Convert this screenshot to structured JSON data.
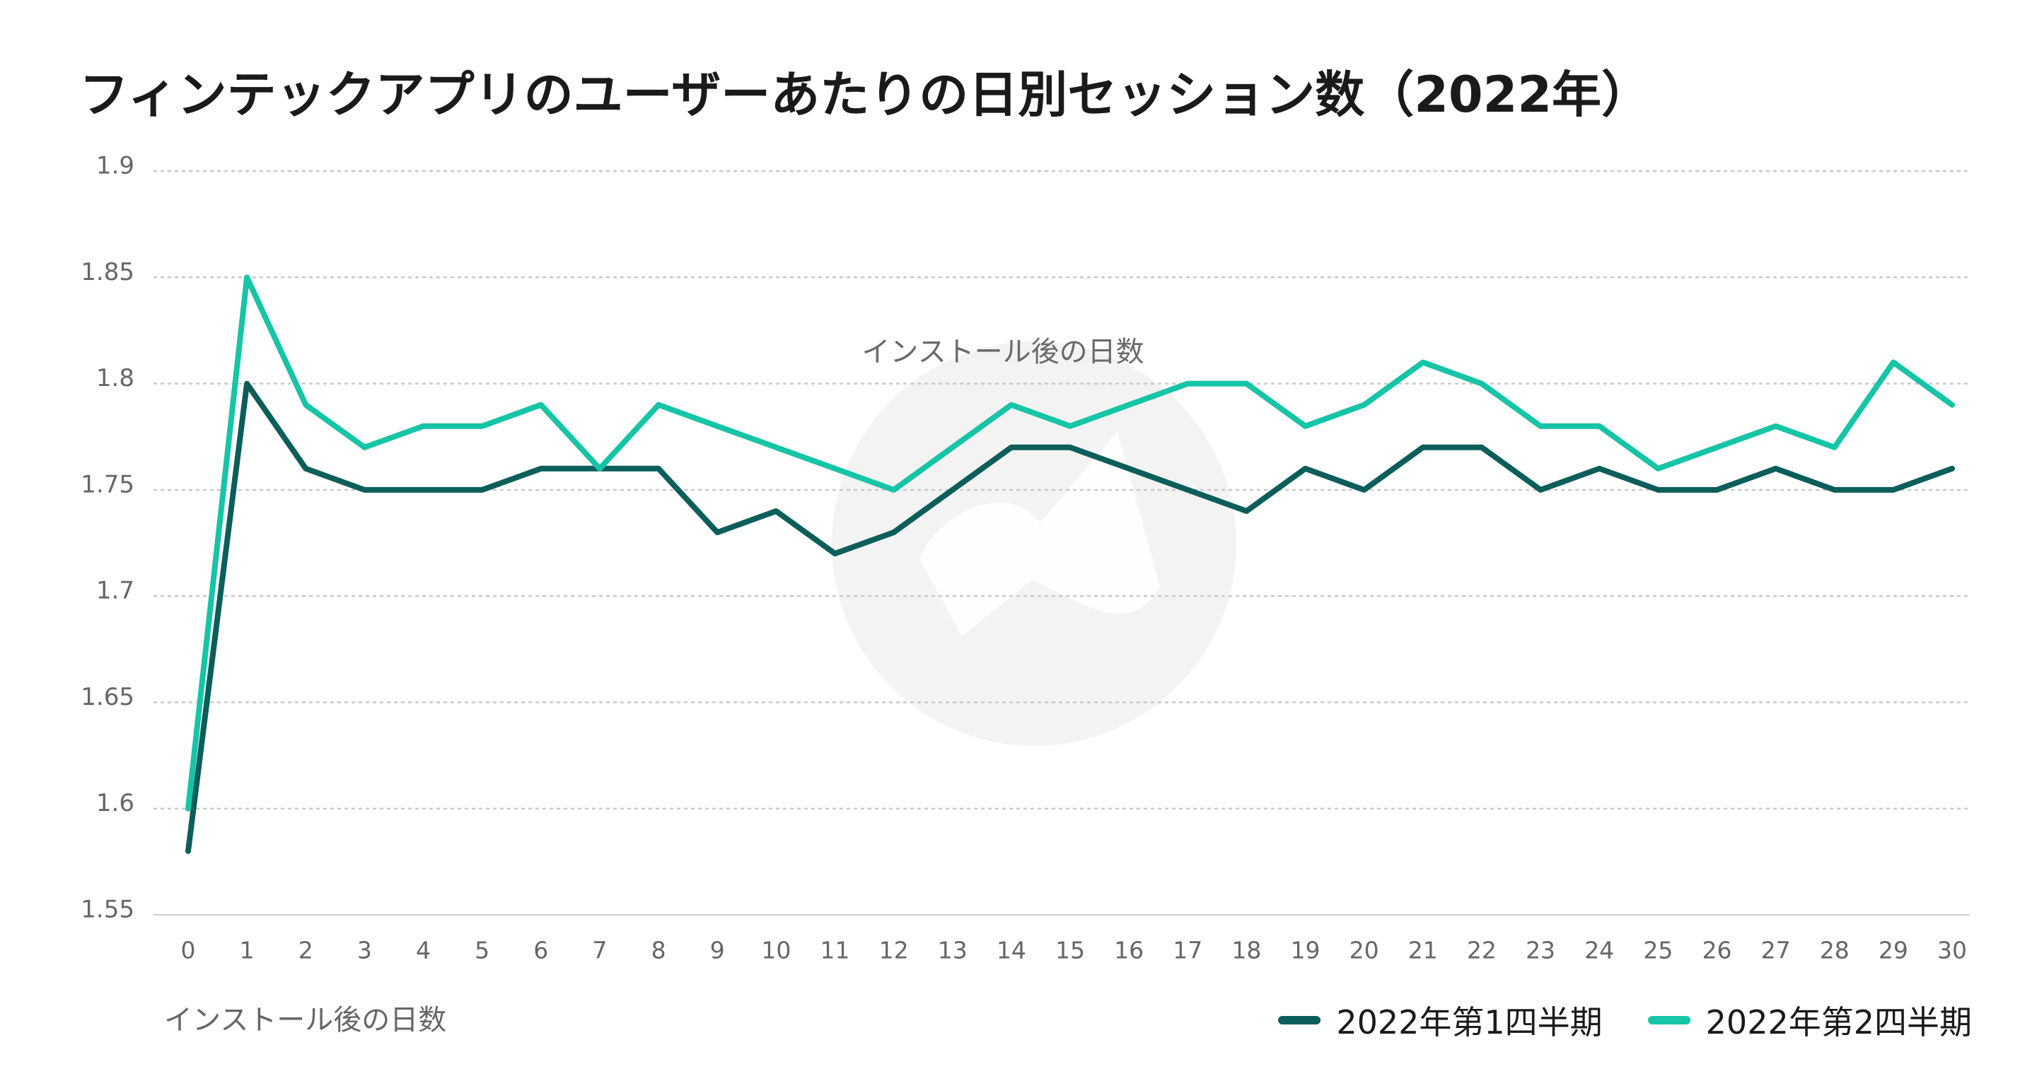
{
  "colors": {
    "q1": "#0b5e5a",
    "q2": "#16c4a6",
    "grid": "#c8c8c8",
    "axis": "#cfcfcf",
    "watermark": "#f3f3f3"
  },
  "chart_data": {
    "type": "line",
    "title": "フィンテックアプリのユーザーあたりの日別セッション数（2022年）",
    "xlabel": "インストール後の日数",
    "ylabel": "",
    "annotation": "インストール後の日数",
    "x": [
      0,
      1,
      2,
      3,
      4,
      5,
      6,
      7,
      8,
      9,
      10,
      11,
      12,
      13,
      14,
      15,
      16,
      17,
      18,
      19,
      20,
      21,
      22,
      23,
      24,
      25,
      26,
      27,
      28,
      29,
      30
    ],
    "ylim": [
      1.55,
      1.9
    ],
    "yticks": [
      "1.55",
      "1.6",
      "1.65",
      "1.7",
      "1.75",
      "1.8",
      "1.85",
      "1.9"
    ],
    "xticks": [
      "0",
      "1",
      "2",
      "3",
      "4",
      "5",
      "6",
      "7",
      "8",
      "9",
      "10",
      "11",
      "12",
      "13",
      "14",
      "15",
      "16",
      "17",
      "18",
      "19",
      "20",
      "21",
      "22",
      "23",
      "24",
      "25",
      "26",
      "27",
      "28",
      "29",
      "30"
    ],
    "grid": true,
    "legend_position": "bottom-right",
    "series": [
      {
        "name": "2022年第1四半期",
        "color": "#0b5e5a",
        "values": [
          1.58,
          1.8,
          1.76,
          1.75,
          1.75,
          1.75,
          1.76,
          1.76,
          1.76,
          1.73,
          1.74,
          1.72,
          1.73,
          1.75,
          1.77,
          1.77,
          1.76,
          1.75,
          1.74,
          1.76,
          1.75,
          1.77,
          1.77,
          1.75,
          1.76,
          1.75,
          1.75,
          1.76,
          1.75,
          1.75,
          1.76
        ]
      },
      {
        "name": "2022年第2四半期",
        "color": "#16c4a6",
        "values": [
          1.6,
          1.85,
          1.79,
          1.77,
          1.78,
          1.78,
          1.79,
          1.76,
          1.79,
          1.78,
          1.77,
          1.76,
          1.75,
          1.77,
          1.79,
          1.78,
          1.79,
          1.8,
          1.8,
          1.78,
          1.79,
          1.81,
          1.8,
          1.78,
          1.78,
          1.76,
          1.77,
          1.78,
          1.77,
          1.81,
          1.79
        ]
      }
    ]
  }
}
